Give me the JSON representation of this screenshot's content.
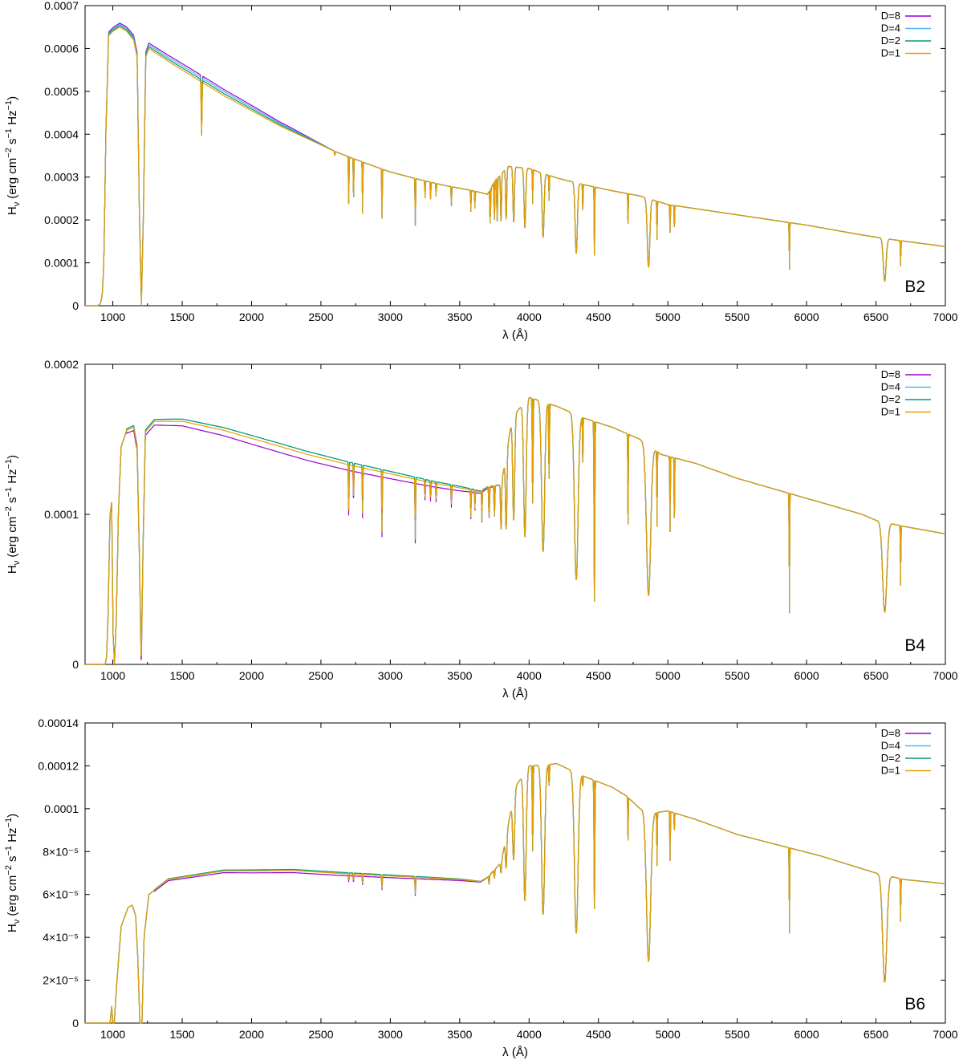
{
  "figure": {
    "legend_labels": [
      "D=8",
      "D=4",
      "D=2",
      "D=1"
    ],
    "series_colors": {
      "D=8": "#9400d3",
      "D=4": "#56b4e9",
      "D=2": "#009e73",
      "D=1": "#e69f00"
    }
  },
  "chart_data": [
    {
      "type": "line",
      "panel_label": "B2",
      "xlabel": "λ (Å)",
      "ylabel": "Hν (erg cm⁻² s⁻¹ Hz⁻¹)",
      "ylabel_base": "H",
      "ylabel_sub": "ν",
      "ylabel_rest": "(erg cm",
      "ylabel_sup1": "−2",
      "ylabel_mid": "s",
      "ylabel_sup2": "−1",
      "ylabel_end": "Hz",
      "ylabel_sup3": "−1",
      "ylabel_close": ")",
      "xlim": [
        800,
        7000
      ],
      "ylim": [
        0,
        0.0007
      ],
      "xticks": [
        1000,
        1500,
        2000,
        2500,
        3000,
        3500,
        4000,
        4500,
        5000,
        5500,
        6000,
        6500,
        7000
      ],
      "xtick_labels": [
        "1000",
        "1500",
        "2000",
        "2500",
        "3000",
        "3500",
        "4000",
        "4500",
        "5000",
        "5500",
        "6000",
        "6500",
        "7000"
      ],
      "yticks": [
        0,
        0.0001,
        0.0002,
        0.0003,
        0.0004,
        0.0005,
        0.0006,
        0.0007
      ],
      "ytick_labels": [
        "0",
        "0.0001",
        "0.0002",
        "0.0003",
        "0.0004",
        "0.0005",
        "0.0006",
        "0.0007"
      ],
      "continuum": [
        [
          880,
          0
        ],
        [
          905,
          2e-06
        ],
        [
          915,
          1e-05
        ],
        [
          925,
          3e-05
        ],
        [
          935,
          0.0001
        ],
        [
          950,
          0.0004
        ],
        [
          970,
          0.00063
        ],
        [
          1000,
          0.00064
        ],
        [
          1050,
          0.00065
        ],
        [
          1100,
          0.00064
        ],
        [
          1150,
          0.00062
        ],
        [
          1175,
          0.00058
        ],
        [
          1192,
          0.0002
        ],
        [
          1206,
          0
        ],
        [
          1220,
          0.0002
        ],
        [
          1238,
          0.00058
        ],
        [
          1260,
          0.0006
        ],
        [
          1400,
          0.00057
        ],
        [
          1600,
          0.00053
        ],
        [
          1800,
          0.00049
        ],
        [
          2000,
          0.000455
        ],
        [
          2200,
          0.00042
        ],
        [
          2400,
          0.00039
        ],
        [
          2600,
          0.00036
        ],
        [
          2800,
          0.000335
        ],
        [
          3000,
          0.000312
        ],
        [
          3200,
          0.000295
        ],
        [
          3400,
          0.00028
        ],
        [
          3600,
          0.000268
        ],
        [
          3700,
          0.00026
        ],
        [
          3750,
          0.00029
        ],
        [
          3850,
          0.000325
        ],
        [
          4000,
          0.00032
        ],
        [
          4200,
          0.000298
        ],
        [
          4400,
          0.000282
        ],
        [
          4600,
          0.000268
        ],
        [
          4800,
          0.000256
        ],
        [
          5000,
          0.000236
        ],
        [
          5500,
          0.000212
        ],
        [
          6000,
          0.000188
        ],
        [
          6400,
          0.000165
        ],
        [
          6600,
          0.000155
        ],
        [
          7000,
          0.000138
        ]
      ],
      "offsets": {
        "D=8": 1.5e-05,
        "D=4": 1e-05,
        "D=2": 5e-06,
        "D=1": 0
      },
      "offset_range": [
        950,
        2300
      ],
      "absorption_lines": [
        [
          1640,
          0.000125,
          6
        ],
        [
          2600,
          1e-05,
          5
        ],
        [
          2700,
          0.00011,
          4
        ],
        [
          2735,
          9e-05,
          4
        ],
        [
          2800,
          0.00012,
          4
        ],
        [
          2940,
          0.000115,
          4
        ],
        [
          3180,
          0.00011,
          4
        ],
        [
          3250,
          4e-05,
          4
        ],
        [
          3290,
          4e-05,
          4
        ],
        [
          3330,
          3e-05,
          4
        ],
        [
          3440,
          4.5e-05,
          4
        ],
        [
          3580,
          5e-05,
          4
        ],
        [
          3610,
          4e-05,
          4
        ],
        [
          3720,
          8e-05,
          6
        ],
        [
          3750,
          9e-05,
          6
        ],
        [
          3770,
          0.0001,
          6
        ],
        [
          3798,
          0.00011,
          7
        ],
        [
          3835,
          0.00012,
          8
        ],
        [
          3889,
          0.00013,
          10
        ],
        [
          3970,
          0.00014,
          12
        ],
        [
          4026,
          8e-05,
          4
        ],
        [
          4101,
          0.00015,
          14
        ],
        [
          4144,
          6e-05,
          4
        ],
        [
          4340,
          0.000165,
          16
        ],
        [
          4387,
          6e-05,
          4
        ],
        [
          4471,
          0.00016,
          4
        ],
        [
          4713,
          7e-05,
          4
        ],
        [
          4861,
          0.00016,
          18
        ],
        [
          4922,
          9e-05,
          4
        ],
        [
          5016,
          6.5e-05,
          4
        ],
        [
          5047,
          5e-05,
          4
        ],
        [
          5876,
          0.00011,
          4
        ],
        [
          6563,
          0.0001,
          20
        ],
        [
          6678,
          6e-05,
          4
        ]
      ]
    },
    {
      "type": "line",
      "panel_label": "B4",
      "xlabel": "λ (Å)",
      "ylabel": "Hν (erg cm⁻² s⁻¹ Hz⁻¹)",
      "ylabel_base": "H",
      "ylabel_sub": "ν",
      "ylabel_rest": "(erg cm",
      "ylabel_sup1": "−2",
      "ylabel_mid": "s",
      "ylabel_sup2": "−1",
      "ylabel_end": "Hz",
      "ylabel_sup3": "−1",
      "ylabel_close": ")",
      "xlim": [
        800,
        7000
      ],
      "ylim": [
        0,
        0.0002
      ],
      "xticks": [
        1000,
        1500,
        2000,
        2500,
        3000,
        3500,
        4000,
        4500,
        5000,
        5500,
        6000,
        6500,
        7000
      ],
      "xtick_labels": [
        "1000",
        "1500",
        "2000",
        "2500",
        "3000",
        "3500",
        "4000",
        "4500",
        "5000",
        "5500",
        "6000",
        "6500",
        "7000"
      ],
      "yticks": [
        0,
        0.0001,
        0.0002
      ],
      "ytick_labels": [
        "0",
        "0.0001",
        "0.0002"
      ],
      "continuum": [
        [
          900,
          0
        ],
        [
          945,
          0
        ],
        [
          955,
          5e-06
        ],
        [
          965,
          3e-05
        ],
        [
          980,
          0.0001
        ],
        [
          992,
          0.000108
        ],
        [
          1002,
          2e-05
        ],
        [
          1012,
          0
        ],
        [
          1025,
          3e-05
        ],
        [
          1040,
          0.0001
        ],
        [
          1060,
          0.000145
        ],
        [
          1100,
          0.000156
        ],
        [
          1150,
          0.000158
        ],
        [
          1175,
          0.000145
        ],
        [
          1190,
          8e-05
        ],
        [
          1205,
          0
        ],
        [
          1218,
          8e-05
        ],
        [
          1235,
          0.000155
        ],
        [
          1300,
          0.000162
        ],
        [
          1500,
          0.000162
        ],
        [
          1800,
          0.000156
        ],
        [
          2100,
          0.000148
        ],
        [
          2400,
          0.00014
        ],
        [
          2700,
          0.000133
        ],
        [
          3000,
          0.000127
        ],
        [
          3300,
          0.000121
        ],
        [
          3600,
          0.000116
        ],
        [
          3650,
          0.000115
        ],
        [
          3700,
          0.000118
        ],
        [
          3800,
          0.00012
        ],
        [
          3880,
          0.000165
        ],
        [
          4000,
          0.000178
        ],
        [
          4200,
          0.000172
        ],
        [
          4400,
          0.000164
        ],
        [
          4600,
          0.000158
        ],
        [
          4800,
          0.00015
        ],
        [
          4950,
          0.00014
        ],
        [
          5200,
          0.000134
        ],
        [
          5500,
          0.000124
        ],
        [
          5800,
          0.000116
        ],
        [
          6100,
          0.000108
        ],
        [
          6400,
          0.0001
        ],
        [
          6500,
          9.6e-05
        ],
        [
          6700,
          9.2e-05
        ],
        [
          7000,
          8.7e-05
        ]
      ],
      "offsets": {
        "D=8": -4e-06,
        "D=4": 2e-06,
        "D=2": 2e-06,
        "D=1": 0
      },
      "offset_range": [
        1100,
        3500
      ],
      "absorption_lines": [
        [
          2700,
          3e-05,
          4
        ],
        [
          2735,
          2e-05,
          4
        ],
        [
          2800,
          3e-05,
          4
        ],
        [
          2940,
          4e-05,
          4
        ],
        [
          3180,
          4e-05,
          4
        ],
        [
          3250,
          1e-05,
          4
        ],
        [
          3290,
          1e-05,
          4
        ],
        [
          3330,
          1e-05,
          4
        ],
        [
          3440,
          1.2e-05,
          4
        ],
        [
          3580,
          1.8e-05,
          4
        ],
        [
          3610,
          1.2e-05,
          4
        ],
        [
          3660,
          2e-05,
          4
        ],
        [
          3712,
          2e-05,
          6
        ],
        [
          3750,
          2e-05,
          6
        ],
        [
          3798,
          3e-05,
          7
        ],
        [
          3835,
          5e-05,
          10
        ],
        [
          3889,
          7e-05,
          14
        ],
        [
          3970,
          9e-05,
          18
        ],
        [
          4026,
          7e-05,
          6
        ],
        [
          4101,
          0.0001,
          22
        ],
        [
          4144,
          5e-05,
          6
        ],
        [
          4340,
          0.00011,
          26
        ],
        [
          4387,
          3e-05,
          4
        ],
        [
          4471,
          0.00012,
          6
        ],
        [
          4713,
          6e-05,
          4
        ],
        [
          4861,
          0.0001,
          30
        ],
        [
          4922,
          5e-05,
          4
        ],
        [
          5016,
          5e-05,
          4
        ],
        [
          5047,
          4e-05,
          4
        ],
        [
          5876,
          8e-05,
          4
        ],
        [
          6563,
          6e-05,
          30
        ],
        [
          6678,
          4e-05,
          4
        ]
      ]
    },
    {
      "type": "line",
      "panel_label": "B6",
      "xlabel": "λ (Å)",
      "ylabel": "Hν (erg cm⁻² s⁻¹ Hz⁻¹)",
      "ylabel_base": "H",
      "ylabel_sub": "ν",
      "ylabel_rest": "(erg cm",
      "ylabel_sup1": "−2",
      "ylabel_mid": "s",
      "ylabel_sup2": "−1",
      "ylabel_end": "Hz",
      "ylabel_sup3": "−1",
      "ylabel_close": ")",
      "xlim": [
        800,
        7000
      ],
      "ylim": [
        0,
        0.00014
      ],
      "xticks": [
        1000,
        1500,
        2000,
        2500,
        3000,
        3500,
        4000,
        4500,
        5000,
        5500,
        6000,
        6500,
        7000
      ],
      "xtick_labels": [
        "1000",
        "1500",
        "2000",
        "2500",
        "3000",
        "3500",
        "4000",
        "4500",
        "5000",
        "5500",
        "6000",
        "6500",
        "7000"
      ],
      "yticks": [
        0,
        2e-05,
        4e-05,
        6e-05,
        8e-05,
        0.0001,
        0.00012,
        0.00014
      ],
      "ytick_labels": [
        "0",
        "2×10⁻⁵",
        "4×10⁻⁵",
        "6×10⁻⁵",
        "8×10⁻⁵",
        "0.0001",
        "0.00012",
        "0.00014"
      ],
      "continuum": [
        [
          980,
          0
        ],
        [
          992,
          8e-06
        ],
        [
          1000,
          0
        ],
        [
          1010,
          0
        ],
        [
          1030,
          2e-05
        ],
        [
          1060,
          4.5e-05
        ],
        [
          1110,
          5.4e-05
        ],
        [
          1140,
          5.5e-05
        ],
        [
          1165,
          5e-05
        ],
        [
          1180,
          3e-05
        ],
        [
          1195,
          0
        ],
        [
          1210,
          0
        ],
        [
          1225,
          4e-05
        ],
        [
          1260,
          6e-05
        ],
        [
          1400,
          6.7e-05
        ],
        [
          1600,
          6.9e-05
        ],
        [
          1800,
          7.1e-05
        ],
        [
          2000,
          7.1e-05
        ],
        [
          2300,
          7.12e-05
        ],
        [
          2600,
          7e-05
        ],
        [
          2900,
          6.9e-05
        ],
        [
          3200,
          6.8e-05
        ],
        [
          3500,
          6.7e-05
        ],
        [
          3650,
          6.6e-05
        ],
        [
          3700,
          6.8e-05
        ],
        [
          3800,
          7.5e-05
        ],
        [
          3900,
          0.00011
        ],
        [
          4000,
          0.00012
        ],
        [
          4200,
          0.000121
        ],
        [
          4400,
          0.000115
        ],
        [
          4600,
          0.00011
        ],
        [
          4700,
          0.000106
        ],
        [
          4800,
          0.0001
        ],
        [
          4900,
          9.8e-05
        ],
        [
          5000,
          9.9e-05
        ],
        [
          5200,
          9.5e-05
        ],
        [
          5500,
          8.8e-05
        ],
        [
          5800,
          8.3e-05
        ],
        [
          6100,
          7.8e-05
        ],
        [
          6400,
          7.2e-05
        ],
        [
          6500,
          7e-05
        ],
        [
          6700,
          6.7e-05
        ],
        [
          7000,
          6.5e-05
        ]
      ],
      "offsets": {
        "D=8": -1e-06,
        "D=4": 0,
        "D=2": 5e-07,
        "D=1": 0
      },
      "offset_range": [
        1300,
        3500
      ],
      "absorption_lines": [
        [
          2700,
          3e-06,
          4
        ],
        [
          2735,
          3e-06,
          4
        ],
        [
          2800,
          4e-06,
          4
        ],
        [
          2940,
          6e-06,
          4
        ],
        [
          3180,
          8e-06,
          4
        ],
        [
          3712,
          4e-06,
          6
        ],
        [
          3750,
          4e-06,
          6
        ],
        [
          3798,
          5e-06,
          7
        ],
        [
          3835,
          1.5e-05,
          10
        ],
        [
          3889,
          3e-05,
          14
        ],
        [
          3970,
          6e-05,
          18
        ],
        [
          4026,
          4e-05,
          6
        ],
        [
          4101,
          7e-05,
          22
        ],
        [
          4144,
          1e-05,
          6
        ],
        [
          4340,
          7.5e-05,
          26
        ],
        [
          4387,
          5e-06,
          4
        ],
        [
          4471,
          6e-05,
          6
        ],
        [
          4713,
          2e-05,
          4
        ],
        [
          4861,
          7e-05,
          30
        ],
        [
          4922,
          2.5e-05,
          4
        ],
        [
          5016,
          2.3e-05,
          4
        ],
        [
          5047,
          8e-06,
          4
        ],
        [
          5876,
          4e-05,
          4
        ],
        [
          6563,
          5e-05,
          30
        ],
        [
          6678,
          2e-05,
          4
        ]
      ]
    }
  ]
}
